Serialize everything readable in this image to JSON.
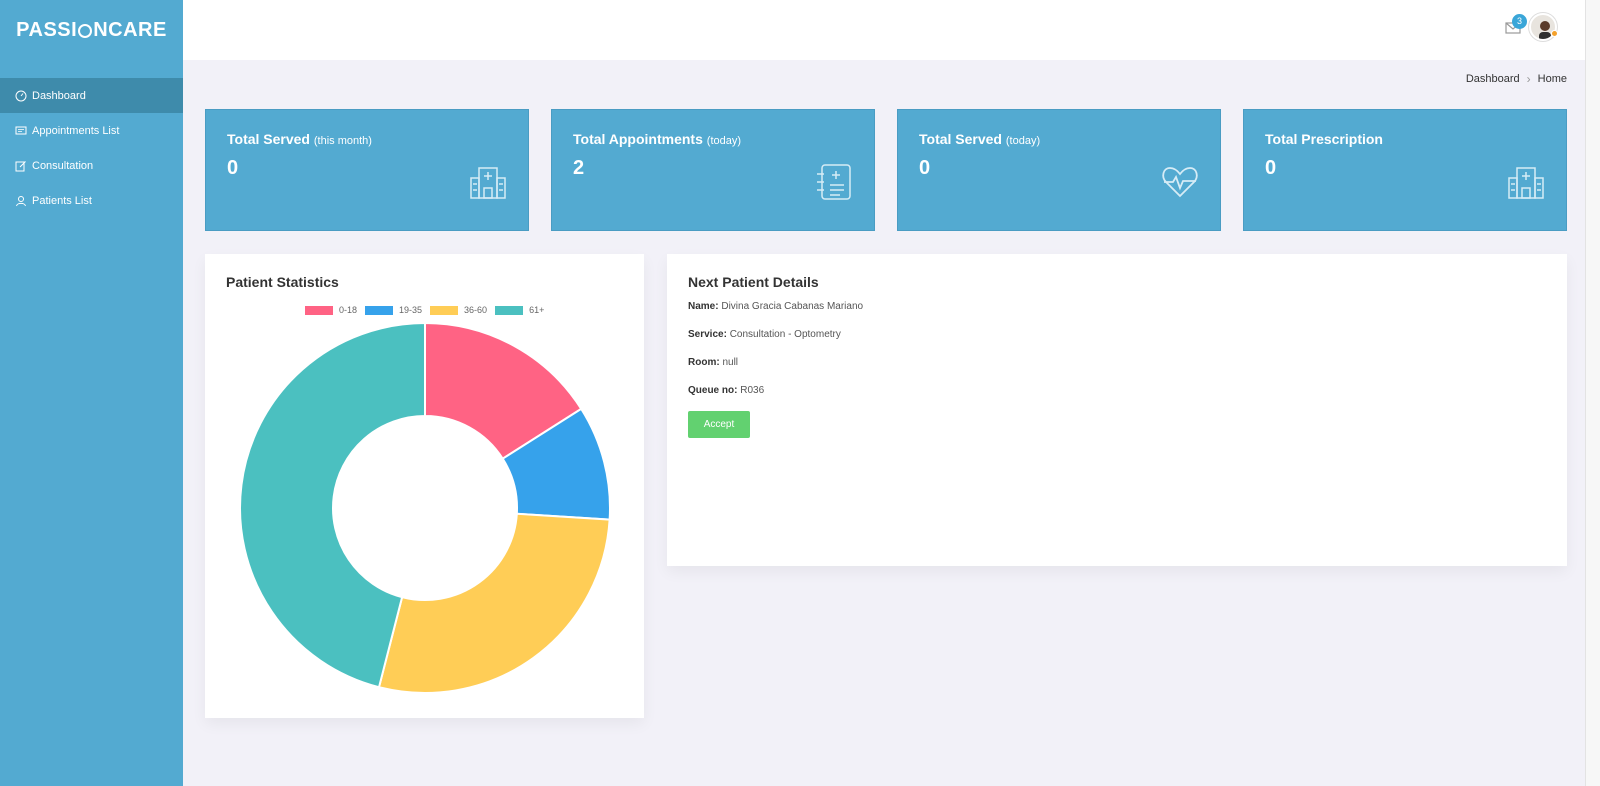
{
  "app": {
    "logo_text_left": "PASSI",
    "logo_text_right": "NCARE"
  },
  "sidebar": {
    "items": [
      {
        "label": "Dashboard",
        "icon": "gauge-icon",
        "active": true
      },
      {
        "label": "Appointments List",
        "icon": "message-icon",
        "active": false
      },
      {
        "label": "Consultation",
        "icon": "edit-icon",
        "active": false
      },
      {
        "label": "Patients List",
        "icon": "user-icon",
        "active": false
      }
    ]
  },
  "topbar": {
    "mail_count": "3"
  },
  "breadcrumb": {
    "parent": "Dashboard",
    "current": "Home"
  },
  "stats": [
    {
      "title": "Total Served",
      "subtitle": "(this month)",
      "value": "0",
      "icon": "hospital-icon"
    },
    {
      "title": "Total Appointments",
      "subtitle": "(today)",
      "value": "2",
      "icon": "medical-record-icon"
    },
    {
      "title": "Total Served",
      "subtitle": "(today)",
      "value": "0",
      "icon": "heartbeat-icon"
    },
    {
      "title": "Total Prescription",
      "subtitle": "",
      "value": "0",
      "icon": "hospital-icon"
    }
  ],
  "patient_statistics": {
    "title": "Patient Statistics",
    "chart_data": {
      "type": "pie",
      "categories": [
        "0-18",
        "19-35",
        "36-60",
        "61+"
      ],
      "values": [
        16,
        10,
        28,
        46
      ],
      "colors": [
        "#ff6384",
        "#36a2eb",
        "#ffcd56",
        "#4bc0c0"
      ],
      "legend": "top"
    }
  },
  "next_patient": {
    "title": "Next Patient Details",
    "name_label": "Name:",
    "name": "Divina Gracia Cabanas Mariano",
    "service_label": "Service:",
    "service": "Consultation - Optometry",
    "room_label": "Room:",
    "room": "null",
    "queue_label": "Queue no:",
    "queue": "R036",
    "accept_label": "Accept"
  },
  "colors": {
    "sidebar": "#53aad1",
    "sidebar_active": "#3e8bab",
    "accept": "#62d170",
    "background": "#f2f1f8"
  }
}
